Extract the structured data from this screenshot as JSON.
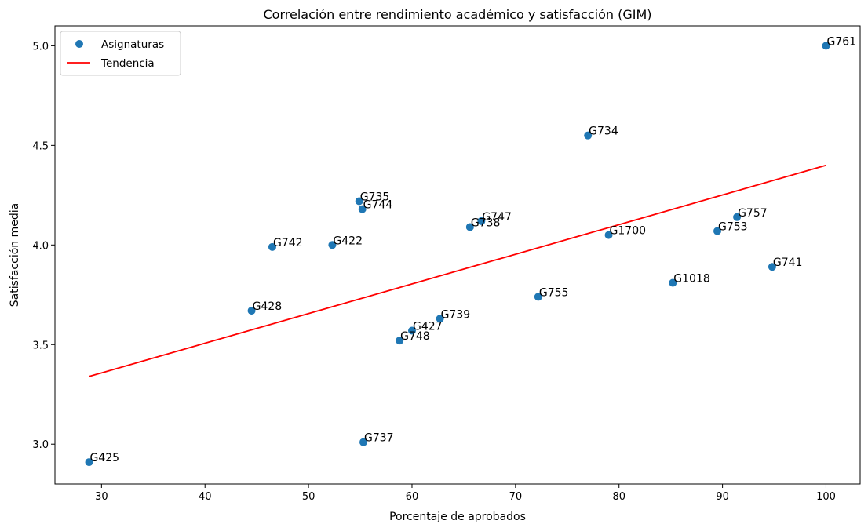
{
  "chart_data": {
    "type": "scatter",
    "title": "Correlación entre rendimiento académico y satisfacción (GIM)",
    "xlabel": "Porcentaje de aprobados",
    "ylabel": "Satisfacción media",
    "xlim": [
      25.5,
      103.3
    ],
    "ylim": [
      2.8,
      5.1
    ],
    "xticks": [
      30,
      40,
      50,
      60,
      70,
      80,
      90,
      100
    ],
    "yticks": [
      3.0,
      3.5,
      4.0,
      4.5,
      5.0
    ],
    "ytick_labels": [
      "3.0",
      "3.5",
      "4.0",
      "4.5",
      "5.0"
    ],
    "grid": false,
    "legend_position": "top-left",
    "series": [
      {
        "name": "Asignaturas",
        "color": "#1f77b4",
        "points": [
          {
            "label": "G761",
            "x": 100.0,
            "y": 5.0
          },
          {
            "label": "G734",
            "x": 77.0,
            "y": 4.55
          },
          {
            "label": "G735",
            "x": 54.9,
            "y": 4.22
          },
          {
            "label": "G744",
            "x": 55.2,
            "y": 4.18
          },
          {
            "label": "G747",
            "x": 66.7,
            "y": 4.12
          },
          {
            "label": "G738",
            "x": 65.6,
            "y": 4.09
          },
          {
            "label": "G757",
            "x": 91.4,
            "y": 4.14
          },
          {
            "label": "G753",
            "x": 89.5,
            "y": 4.07
          },
          {
            "label": "G1700",
            "x": 79.0,
            "y": 4.05
          },
          {
            "label": "G742",
            "x": 46.5,
            "y": 3.99
          },
          {
            "label": "G422",
            "x": 52.3,
            "y": 4.0
          },
          {
            "label": "G741",
            "x": 94.8,
            "y": 3.89
          },
          {
            "label": "G1018",
            "x": 85.2,
            "y": 3.81
          },
          {
            "label": "G755",
            "x": 72.2,
            "y": 3.74
          },
          {
            "label": "G428",
            "x": 44.5,
            "y": 3.67
          },
          {
            "label": "G739",
            "x": 62.7,
            "y": 3.63
          },
          {
            "label": "G427",
            "x": 60.0,
            "y": 3.57
          },
          {
            "label": "G748",
            "x": 58.8,
            "y": 3.52
          },
          {
            "label": "G737",
            "x": 55.3,
            "y": 3.01
          },
          {
            "label": "G425",
            "x": 28.8,
            "y": 2.91
          }
        ]
      },
      {
        "name": "Tendencia",
        "type": "line",
        "color": "#ff0000",
        "x": [
          28.8,
          100.0
        ],
        "y": [
          3.34,
          4.4
        ]
      }
    ]
  }
}
